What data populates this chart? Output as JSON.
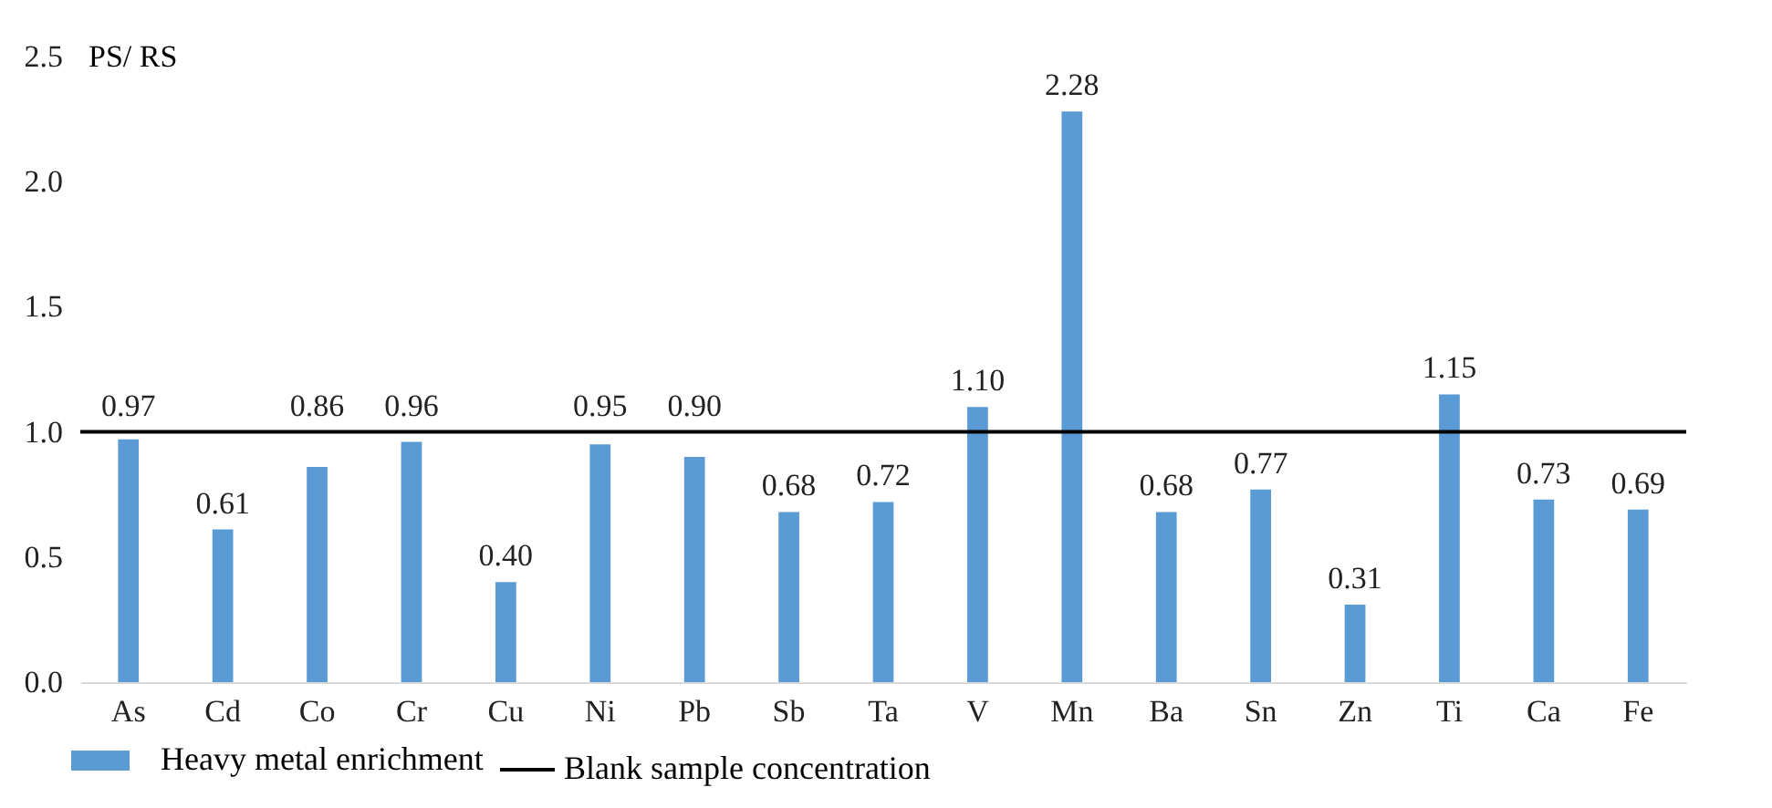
{
  "chart_data": {
    "type": "bar",
    "ylabel": "PS/ RS",
    "categories": [
      "As",
      "Cd",
      "Co",
      "Cr",
      "Cu",
      "Ni",
      "Pb",
      "Sb",
      "Ta",
      "V",
      "Mn",
      "Ba",
      "Sn",
      "Zn",
      "Ti",
      "Ca",
      "Fe"
    ],
    "series": [
      {
        "name": "Heavy metal enrichment",
        "color": "#5b9bd5",
        "values": [
          0.97,
          0.61,
          0.86,
          0.96,
          0.4,
          0.95,
          0.9,
          0.68,
          0.72,
          1.1,
          2.28,
          0.68,
          0.77,
          0.31,
          1.15,
          0.73,
          0.69
        ],
        "value_labels": [
          "0.97",
          "0.61",
          "0.86",
          "0.96",
          "0.40",
          "0.95",
          "0.90",
          "0.68",
          "0.72",
          "1.10",
          "2.28",
          "0.68",
          "0.77",
          "0.31",
          "1.15",
          "0.73",
          "0.69"
        ]
      }
    ],
    "ylim": [
      0,
      2.5
    ],
    "yticks": [
      {
        "value": 0,
        "label": "0.0"
      },
      {
        "value": 0.5,
        "label": "0.5"
      },
      {
        "value": 1,
        "label": "1.0"
      },
      {
        "value": 1.5,
        "label": "1.5"
      },
      {
        "value": 2,
        "label": "2.0"
      },
      {
        "value": 2.5,
        "label": "2.5"
      }
    ],
    "ref_lines": [
      {
        "axis": "y",
        "value": 1,
        "label": "Blank sample concentration",
        "color": "#000000"
      }
    ],
    "grid": false,
    "legend": "bottom"
  }
}
